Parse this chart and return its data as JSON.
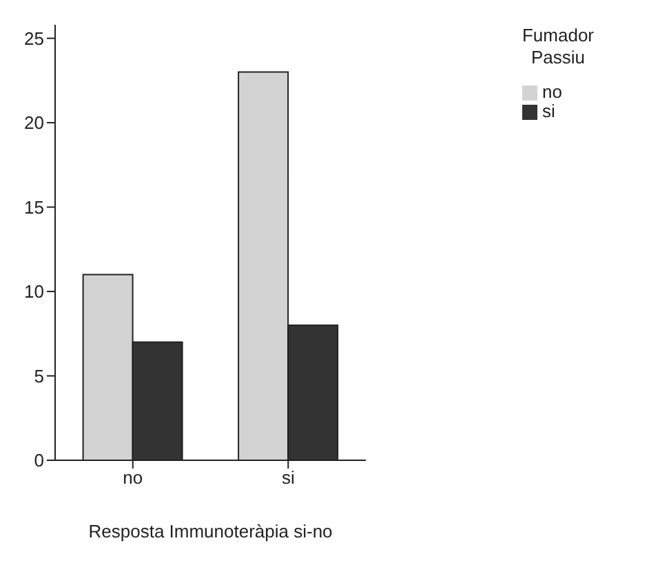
{
  "chart_data": {
    "type": "bar",
    "xlabel": "Resposta Immunoteràpia si-no",
    "legend_title": "Fumador Passiu",
    "categories": [
      "no",
      "si"
    ],
    "series": [
      {
        "name": "no",
        "color": "#d3d3d3",
        "values": [
          11,
          23
        ]
      },
      {
        "name": "si",
        "color": "#333333",
        "values": [
          7,
          8
        ]
      }
    ],
    "ylim": [
      0,
      25.8
    ],
    "yticks": [
      0,
      5,
      10,
      15,
      20,
      25
    ],
    "grid": false,
    "legend": "top right"
  }
}
